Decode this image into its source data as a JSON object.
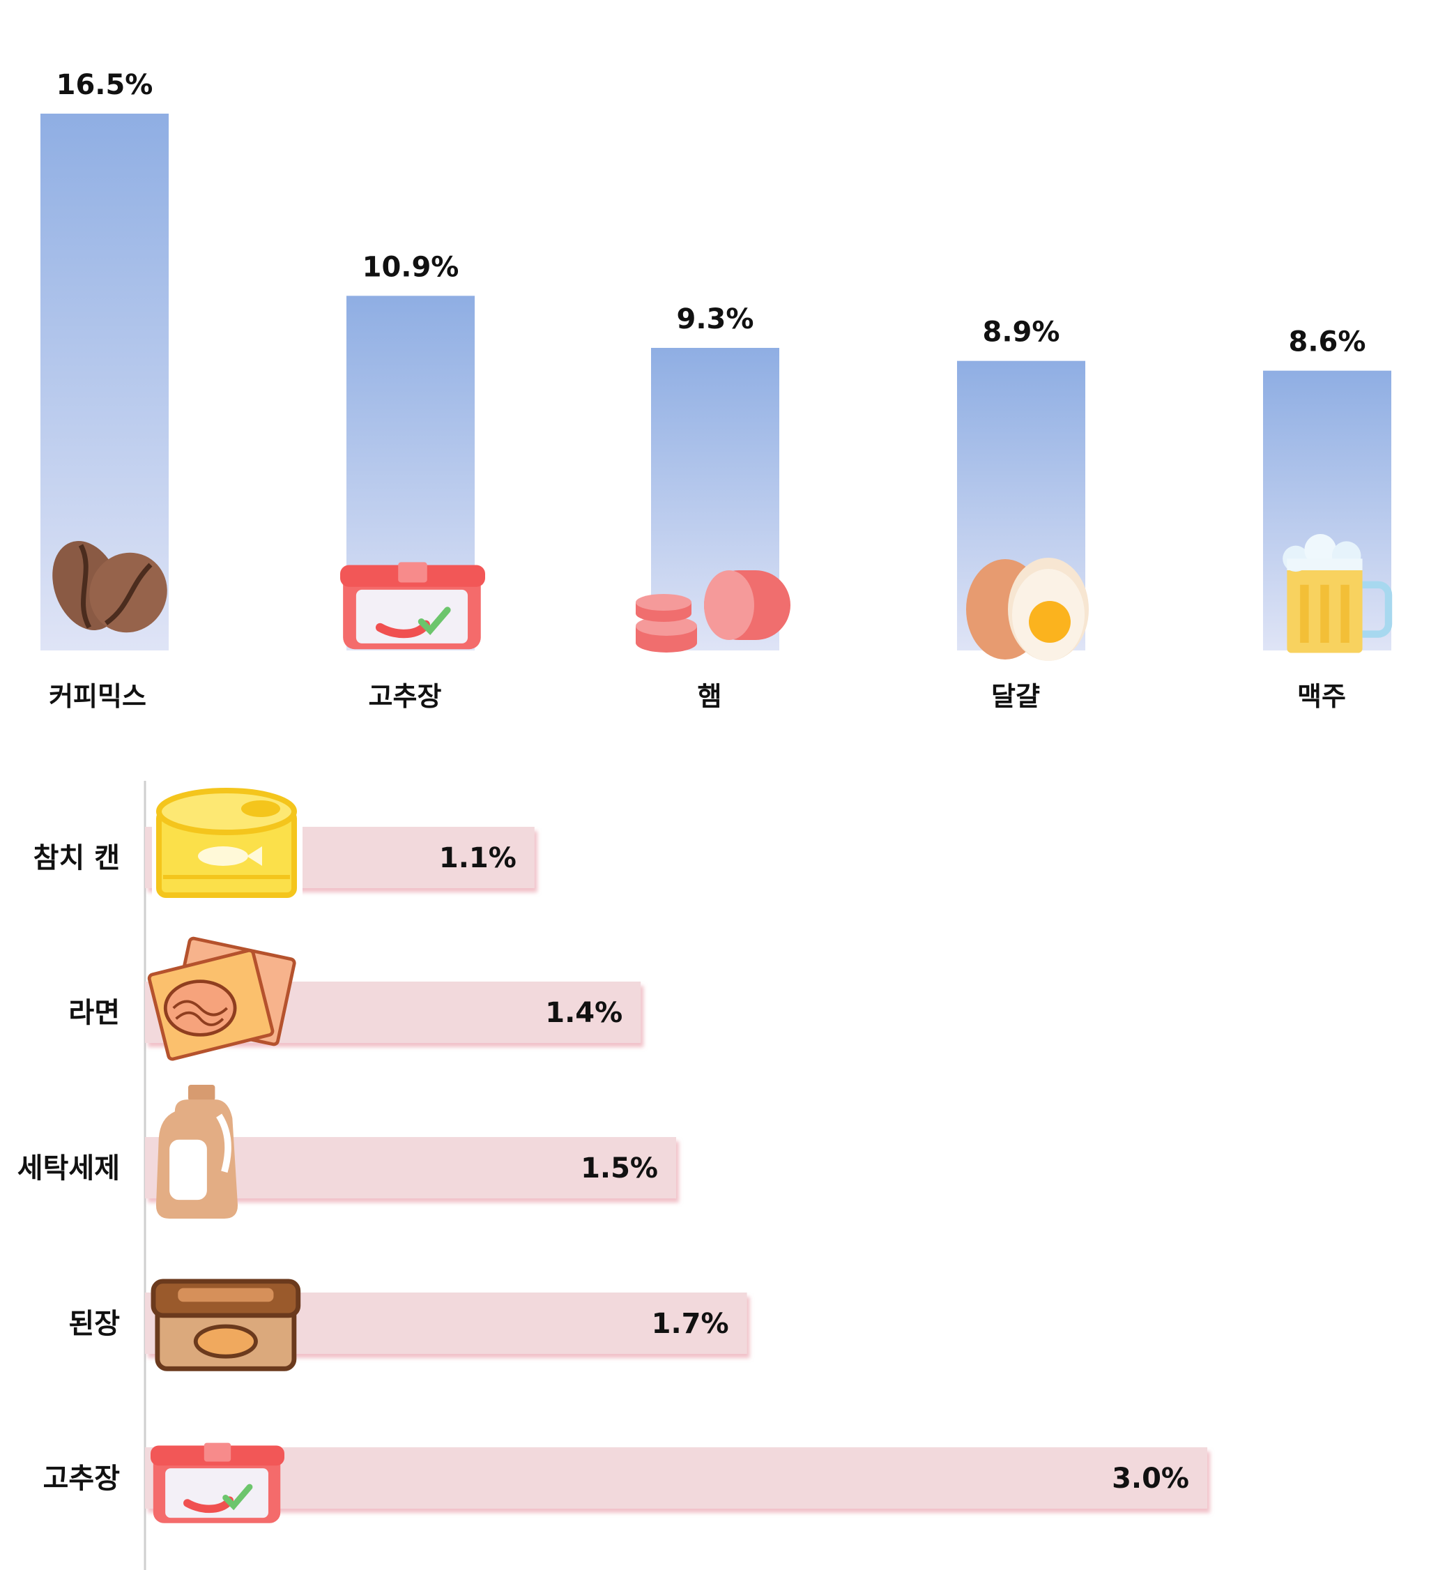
{
  "chart_data": [
    {
      "type": "bar",
      "orientation": "vertical",
      "categories": [
        "커피믹스",
        "고추장",
        "햄",
        "달걀",
        "맥주"
      ],
      "values": [
        16.5,
        10.9,
        9.3,
        8.9,
        8.6
      ],
      "value_labels": [
        "16.5%",
        "10.9%",
        "9.3%",
        "8.9%",
        "8.6%"
      ],
      "icons": [
        "coffee-beans-icon",
        "gochujang-tub-icon",
        "ham-icon",
        "egg-icon",
        "beer-mug-icon"
      ],
      "ylim": [
        0,
        17
      ],
      "grid": false,
      "bar_gradient": [
        "#8faee3",
        "#dfe4f6"
      ]
    },
    {
      "type": "bar",
      "orientation": "horizontal",
      "categories": [
        "참치 캔",
        "라면",
        "세탁세제",
        "된장",
        "고추장"
      ],
      "values": [
        1.1,
        1.4,
        1.5,
        1.7,
        3.0
      ],
      "value_labels": [
        "1.1%",
        "1.4%",
        "1.5%",
        "1.7%",
        "3.0%"
      ],
      "icons": [
        "tuna-can-icon",
        "ramen-pack-icon",
        "detergent-bottle-icon",
        "doenjang-tub-icon",
        "gochujang-tub-icon"
      ],
      "xlim": [
        0,
        3.0
      ],
      "grid": false,
      "bar_color": "#f2d9dc",
      "bar_edge_color": "#e9a2ab"
    }
  ],
  "colors": {
    "text": "#111111",
    "axis": "#cfcfcf"
  }
}
